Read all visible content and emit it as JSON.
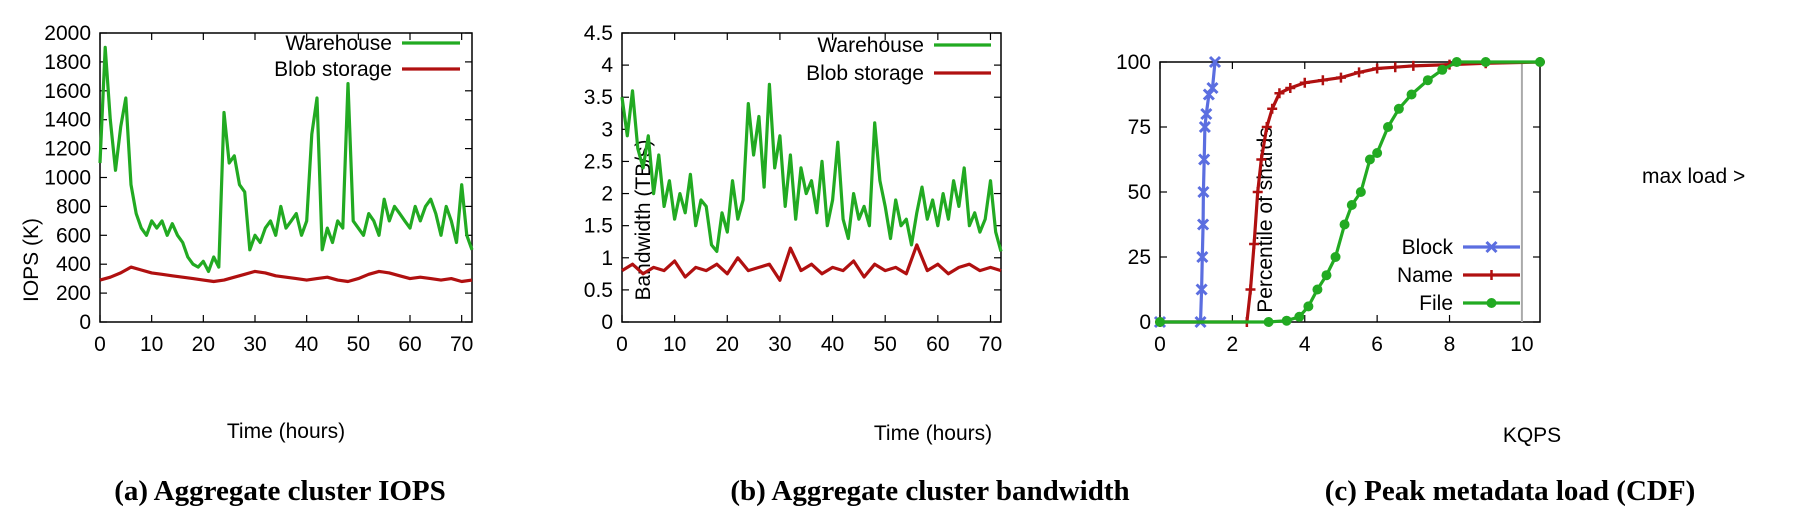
{
  "colors": {
    "warehouse": "#22aa22",
    "blob": "#b01010",
    "block": "#5b6ee0",
    "name": "#b01010",
    "file": "#22aa22",
    "maxload": "#aaaaaa"
  },
  "chart_data": [
    {
      "type": "line",
      "caption": "(a) Aggregate cluster IOPS",
      "xlabel": "Time (hours)",
      "ylabel": "IOPS (K)",
      "xlim": [
        0,
        72
      ],
      "ylim": [
        0,
        2000
      ],
      "xticks": [
        0,
        10,
        20,
        30,
        40,
        50,
        60,
        70
      ],
      "yticks": [
        0,
        200,
        400,
        600,
        800,
        1000,
        1200,
        1400,
        1600,
        1800,
        2000
      ],
      "legend_position": "top-right",
      "series": [
        {
          "name": "Warehouse",
          "color_key": "warehouse",
          "x": [
            0,
            1,
            2,
            3,
            4,
            5,
            6,
            7,
            8,
            9,
            10,
            11,
            12,
            13,
            14,
            15,
            16,
            17,
            18,
            19,
            20,
            21,
            22,
            23,
            24,
            25,
            26,
            27,
            28,
            29,
            30,
            31,
            32,
            33,
            34,
            35,
            36,
            37,
            38,
            39,
            40,
            41,
            42,
            43,
            44,
            45,
            46,
            47,
            48,
            49,
            50,
            51,
            52,
            53,
            54,
            55,
            56,
            57,
            58,
            59,
            60,
            61,
            62,
            63,
            64,
            65,
            66,
            67,
            68,
            69,
            70,
            71,
            72
          ],
          "y": [
            1100,
            1900,
            1400,
            1050,
            1350,
            1550,
            950,
            750,
            650,
            600,
            700,
            650,
            700,
            600,
            680,
            600,
            550,
            450,
            400,
            380,
            420,
            350,
            450,
            380,
            1450,
            1100,
            1150,
            950,
            900,
            500,
            600,
            550,
            650,
            700,
            600,
            800,
            650,
            700,
            750,
            600,
            700,
            1300,
            1550,
            500,
            650,
            550,
            700,
            650,
            1650,
            700,
            650,
            600,
            750,
            700,
            600,
            850,
            700,
            800,
            750,
            700,
            650,
            800,
            700,
            800,
            850,
            750,
            600,
            800,
            700,
            550,
            950,
            600,
            500
          ]
        },
        {
          "name": "Blob storage",
          "color_key": "blob",
          "x": [
            0,
            2,
            4,
            6,
            8,
            10,
            12,
            14,
            16,
            18,
            20,
            22,
            24,
            26,
            28,
            30,
            32,
            34,
            36,
            38,
            40,
            42,
            44,
            46,
            48,
            50,
            52,
            54,
            56,
            58,
            60,
            62,
            64,
            66,
            68,
            70,
            72
          ],
          "y": [
            290,
            310,
            340,
            380,
            360,
            340,
            330,
            320,
            310,
            300,
            290,
            280,
            290,
            310,
            330,
            350,
            340,
            320,
            310,
            300,
            290,
            300,
            310,
            290,
            280,
            300,
            330,
            350,
            340,
            320,
            300,
            310,
            300,
            290,
            300,
            280,
            290
          ]
        }
      ]
    },
    {
      "type": "line",
      "caption": "(b) Aggregate cluster bandwidth",
      "xlabel": "Time (hours)",
      "ylabel": "Bandwidth (TB/s)",
      "xlim": [
        0,
        72
      ],
      "ylim": [
        0,
        4.5
      ],
      "xticks": [
        0,
        10,
        20,
        30,
        40,
        50,
        60,
        70
      ],
      "yticks": [
        0,
        0.5,
        1,
        1.5,
        2,
        2.5,
        3,
        3.5,
        4,
        4.5
      ],
      "legend_position": "top-right",
      "series": [
        {
          "name": "Warehouse",
          "color_key": "warehouse",
          "x": [
            0,
            1,
            2,
            3,
            4,
            5,
            6,
            7,
            8,
            9,
            10,
            11,
            12,
            13,
            14,
            15,
            16,
            17,
            18,
            19,
            20,
            21,
            22,
            23,
            24,
            25,
            26,
            27,
            28,
            29,
            30,
            31,
            32,
            33,
            34,
            35,
            36,
            37,
            38,
            39,
            40,
            41,
            42,
            43,
            44,
            45,
            46,
            47,
            48,
            49,
            50,
            51,
            52,
            53,
            54,
            55,
            56,
            57,
            58,
            59,
            60,
            61,
            62,
            63,
            64,
            65,
            66,
            67,
            68,
            69,
            70,
            71,
            72
          ],
          "y": [
            3.5,
            2.9,
            3.6,
            2.7,
            2.4,
            2.9,
            2.0,
            2.6,
            1.8,
            2.2,
            1.6,
            2.0,
            1.7,
            2.3,
            1.5,
            1.9,
            1.8,
            1.2,
            1.1,
            1.7,
            1.4,
            2.2,
            1.6,
            1.9,
            3.4,
            2.6,
            3.2,
            2.1,
            3.7,
            2.4,
            2.9,
            1.8,
            2.6,
            1.6,
            2.4,
            2.0,
            2.2,
            1.7,
            2.5,
            1.5,
            1.9,
            2.8,
            1.6,
            1.3,
            2.0,
            1.6,
            1.8,
            1.5,
            3.1,
            2.2,
            1.8,
            1.3,
            1.9,
            1.5,
            1.6,
            1.2,
            1.7,
            2.1,
            1.6,
            1.9,
            1.5,
            2.0,
            1.6,
            2.2,
            1.8,
            2.4,
            1.5,
            1.7,
            1.4,
            1.6,
            2.2,
            1.4,
            1.1
          ]
        },
        {
          "name": "Blob storage",
          "color_key": "blob",
          "x": [
            0,
            2,
            4,
            6,
            8,
            10,
            12,
            14,
            16,
            18,
            20,
            22,
            24,
            26,
            28,
            30,
            32,
            34,
            36,
            38,
            40,
            42,
            44,
            46,
            48,
            50,
            52,
            54,
            56,
            58,
            60,
            62,
            64,
            66,
            68,
            70,
            72
          ],
          "y": [
            0.8,
            0.9,
            0.75,
            0.85,
            0.8,
            0.95,
            0.7,
            0.85,
            0.8,
            0.9,
            0.75,
            1.0,
            0.8,
            0.85,
            0.9,
            0.65,
            1.15,
            0.8,
            0.9,
            0.75,
            0.85,
            0.8,
            0.95,
            0.7,
            0.9,
            0.8,
            0.85,
            0.75,
            1.2,
            0.8,
            0.9,
            0.75,
            0.85,
            0.9,
            0.8,
            0.85,
            0.8
          ]
        }
      ]
    },
    {
      "type": "line",
      "caption": "(c) Peak metadata load (CDF)",
      "xlabel": "KQPS",
      "ylabel": "Percentile of shards",
      "xlim": [
        0,
        10.5
      ],
      "ylim": [
        0,
        100
      ],
      "xticks": [
        0,
        2,
        4,
        6,
        8,
        10
      ],
      "yticks": [
        0,
        25,
        50,
        75,
        100
      ],
      "legend_position": "bottom-right",
      "annotation": "max load >",
      "max_load_x": 10,
      "series": [
        {
          "name": "Block",
          "color_key": "block",
          "marker": "x",
          "x": [
            0,
            1.12,
            1.15,
            1.17,
            1.19,
            1.2,
            1.22,
            1.24,
            1.28,
            1.35,
            1.45,
            1.52
          ],
          "y": [
            0,
            0,
            12.5,
            25,
            37.5,
            50,
            62.5,
            75,
            80,
            87.5,
            90,
            100
          ]
        },
        {
          "name": "Name",
          "color_key": "name",
          "marker": "+",
          "x": [
            0,
            2.4,
            2.5,
            2.6,
            2.7,
            2.8,
            2.95,
            3.1,
            3.3,
            3.6,
            4.0,
            4.5,
            5.0,
            5.5,
            6.0,
            6.5,
            7.0,
            8.0,
            9.0,
            10.5
          ],
          "y": [
            0,
            0,
            12.5,
            30,
            50,
            62.5,
            75,
            82,
            88,
            90,
            92,
            93,
            94,
            96,
            97.5,
            98,
            98.5,
            99,
            99.5,
            100
          ]
        },
        {
          "name": "File",
          "color_key": "file",
          "marker": "o",
          "x": [
            0,
            3.0,
            3.5,
            3.85,
            4.1,
            4.35,
            4.6,
            4.85,
            5.1,
            5.3,
            5.55,
            5.8,
            6.0,
            6.3,
            6.6,
            6.95,
            7.4,
            7.8,
            8.2,
            9.0,
            10.5
          ],
          "y": [
            0,
            0,
            0.5,
            2,
            6,
            12.5,
            18,
            25,
            37.5,
            45,
            50,
            62.5,
            65,
            75,
            82,
            87.5,
            93,
            97,
            100,
            100,
            100
          ]
        }
      ]
    }
  ]
}
